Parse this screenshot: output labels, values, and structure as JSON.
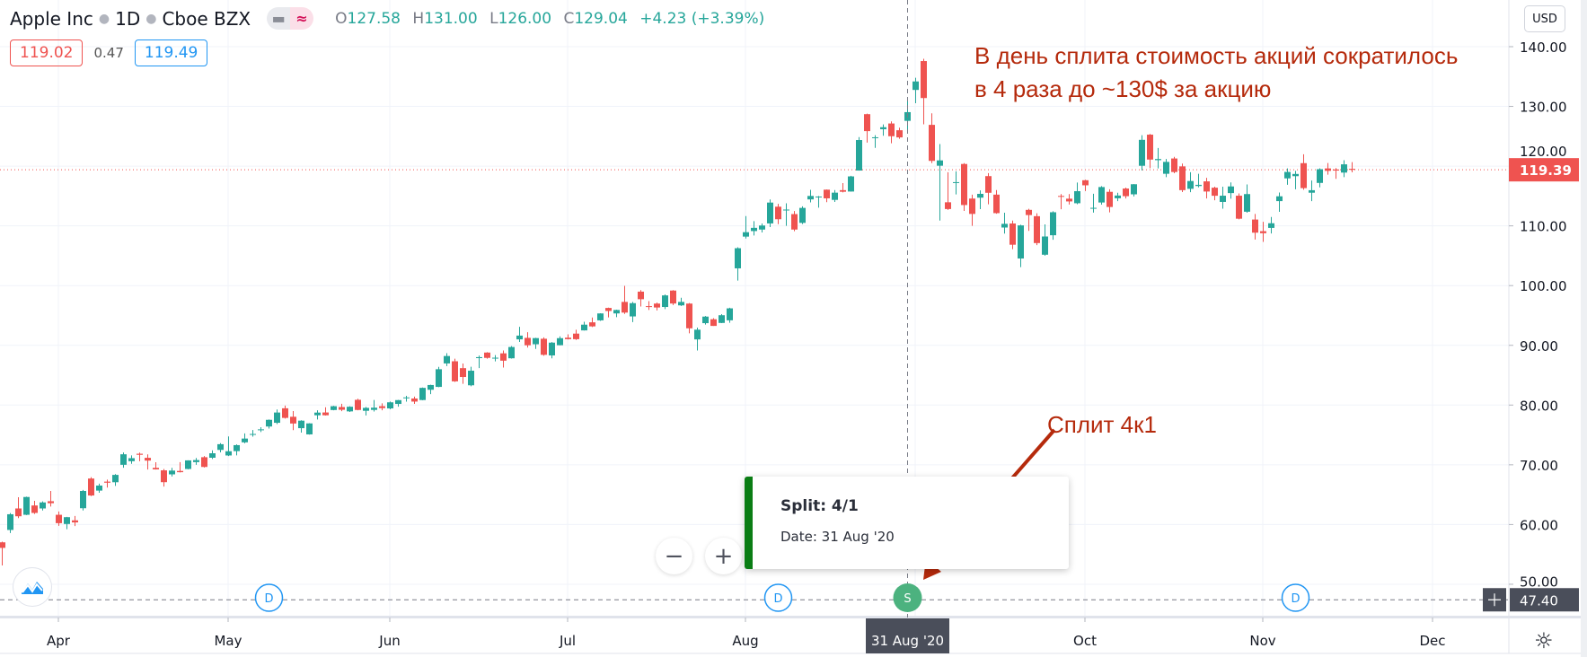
{
  "header": {
    "symbol": "Apple Inc",
    "interval": "1D",
    "exchange": "Cboe BZX",
    "toggle_icons": [
      "minus-icon",
      "approx-icon"
    ],
    "ohlc": {
      "o_label": "O",
      "o": "127.58",
      "h_label": "H",
      "h": "131.00",
      "l_label": "L",
      "l": "126.00",
      "c_label": "C",
      "c": "129.04",
      "change": "+4.23 (+3.39%)"
    },
    "bid": "119.02",
    "spread": "0.47",
    "ask": "119.49"
  },
  "currency_button": "USD",
  "annotations": {
    "split_note_line1": "В день сплита стоимость акций сократилось",
    "split_note_line2": "в 4 раза до ~130$ за акцию",
    "split_label": "Сплит 4к1",
    "color": "#b52a0c"
  },
  "tooltip": {
    "title": "Split: 4/1",
    "date": "Date: 31 Aug '20",
    "accent": "#0a7d14"
  },
  "zoom_controls": {
    "minus": "−",
    "plus": "+"
  },
  "crosshair": {
    "date_label": "31 Aug '20",
    "price_label": "47.40",
    "date": "2020-08-31",
    "price": 47.4
  },
  "last_price": {
    "label": "119.39",
    "value": 119.39,
    "color": "#ef5350"
  },
  "colors": {
    "up": "#26a69a",
    "down": "#ef5350",
    "dividend": "#2196f3",
    "split": "#4cb27f"
  },
  "chart_data": {
    "type": "candlestick",
    "title": "",
    "y_ticks": [
      "140.00",
      "130.00",
      "120.00",
      "110.00",
      "100.00",
      "90.00",
      "80.00",
      "70.00",
      "60.00",
      "50.00"
    ],
    "ylim": [
      47.4,
      140
    ],
    "grid": true,
    "x_ticks": [
      {
        "label": "Apr",
        "date": "2020-04-01"
      },
      {
        "label": "May",
        "date": "2020-05-01"
      },
      {
        "label": "Jun",
        "date": "2020-06-01"
      },
      {
        "label": "Jul",
        "date": "2020-07-01"
      },
      {
        "label": "Aug",
        "date": "2020-08-03"
      },
      {
        "label": "",
        "date": "2020-09-01"
      },
      {
        "label": "Oct",
        "date": "2020-10-01"
      },
      {
        "label": "Nov",
        "date": "2020-11-02"
      },
      {
        "label": "Dec",
        "date": "2020-12-01"
      }
    ],
    "events": [
      {
        "type": "D",
        "date": "2020-05-08"
      },
      {
        "type": "D",
        "date": "2020-08-07"
      },
      {
        "type": "S",
        "date": "2020-08-31"
      },
      {
        "type": "D",
        "date": "2020-11-06"
      }
    ],
    "candles": [
      [
        "2020-03-23",
        57.02,
        57.13,
        53.15,
        56.09
      ],
      [
        "2020-03-24",
        59.09,
        61.92,
        58.58,
        61.72
      ],
      [
        "2020-03-25",
        62.69,
        64.56,
        61.08,
        61.38
      ],
      [
        "2020-03-26",
        61.63,
        64.67,
        61.59,
        64.61
      ],
      [
        "2020-03-27",
        63.19,
        63.97,
        61.76,
        61.94
      ],
      [
        "2020-03-30",
        62.69,
        63.88,
        62.35,
        63.7
      ],
      [
        "2020-03-31",
        63.9,
        65.62,
        63.0,
        63.57
      ],
      [
        "2020-04-01",
        61.63,
        62.18,
        59.78,
        60.23
      ],
      [
        "2020-04-02",
        60.09,
        61.29,
        59.22,
        61.23
      ],
      [
        "2020-04-03",
        60.7,
        61.43,
        59.74,
        60.35
      ],
      [
        "2020-04-06",
        62.73,
        65.78,
        62.35,
        65.62
      ],
      [
        "2020-04-07",
        67.7,
        67.93,
        64.75,
        64.86
      ],
      [
        "2020-04-08",
        65.68,
        66.84,
        65.31,
        66.52
      ],
      [
        "2020-04-09",
        67.18,
        67.52,
        66.18,
        67.0
      ],
      [
        "2020-04-13",
        67.08,
        68.43,
        66.46,
        68.31
      ],
      [
        "2020-04-14",
        70.0,
        72.06,
        69.51,
        71.76
      ],
      [
        "2020-04-15",
        70.6,
        71.58,
        70.16,
        71.11
      ],
      [
        "2020-04-16",
        71.85,
        72.05,
        70.59,
        71.67
      ],
      [
        "2020-04-17",
        71.17,
        71.74,
        69.21,
        70.7
      ],
      [
        "2020-04-20",
        69.49,
        70.42,
        69.21,
        69.23
      ],
      [
        "2020-04-21",
        69.07,
        69.31,
        66.36,
        67.09
      ],
      [
        "2020-04-22",
        68.4,
        69.48,
        68.05,
        69.03
      ],
      [
        "2020-04-23",
        68.97,
        70.44,
        68.72,
        68.76
      ],
      [
        "2020-04-24",
        69.3,
        70.75,
        69.25,
        70.74
      ],
      [
        "2020-04-27",
        70.45,
        71.14,
        69.99,
        70.79
      ],
      [
        "2020-04-28",
        71.27,
        71.46,
        69.55,
        69.64
      ],
      [
        "2020-04-29",
        71.18,
        72.42,
        70.97,
        71.93
      ],
      [
        "2020-04-30",
        72.49,
        73.63,
        72.09,
        73.45
      ],
      [
        "2020-05-01",
        71.56,
        74.75,
        71.46,
        72.27
      ],
      [
        "2020-05-04",
        72.29,
        73.42,
        71.58,
        73.29
      ],
      [
        "2020-05-05",
        73.76,
        75.25,
        73.61,
        74.39
      ],
      [
        "2020-05-06",
        75.11,
        75.81,
        74.72,
        75.16
      ],
      [
        "2020-05-07",
        75.81,
        76.29,
        75.49,
        75.93
      ],
      [
        "2020-05-08",
        76.41,
        77.59,
        76.07,
        77.53
      ],
      [
        "2020-05-11",
        77.03,
        79.26,
        76.81,
        78.75
      ],
      [
        "2020-05-12",
        79.46,
        79.92,
        77.73,
        77.85
      ],
      [
        "2020-05-13",
        78.04,
        78.99,
        75.8,
        76.91
      ],
      [
        "2020-05-14",
        76.13,
        77.45,
        75.38,
        77.39
      ],
      [
        "2020-05-15",
        75.09,
        76.97,
        75.05,
        76.93
      ],
      [
        "2020-05-18",
        78.29,
        79.13,
        77.58,
        78.74
      ],
      [
        "2020-05-19",
        78.76,
        79.63,
        78.25,
        78.29
      ],
      [
        "2020-05-20",
        79.17,
        79.88,
        79.13,
        79.81
      ],
      [
        "2020-05-21",
        79.67,
        80.22,
        78.97,
        79.21
      ],
      [
        "2020-05-22",
        78.94,
        79.81,
        78.84,
        79.72
      ],
      [
        "2020-05-26",
        80.88,
        81.06,
        79.13,
        79.18
      ],
      [
        "2020-05-27",
        79.04,
        79.68,
        78.27,
        79.53
      ],
      [
        "2020-05-28",
        79.19,
        80.86,
        78.91,
        79.56
      ],
      [
        "2020-05-29",
        79.81,
        80.29,
        79.12,
        79.49
      ],
      [
        "2020-06-01",
        79.44,
        80.59,
        79.3,
        80.46
      ],
      [
        "2020-06-02",
        80.19,
        80.86,
        79.73,
        80.83
      ],
      [
        "2020-06-03",
        81.17,
        81.55,
        80.57,
        81.28
      ],
      [
        "2020-06-04",
        81.1,
        81.41,
        80.2,
        80.58
      ],
      [
        "2020-06-05",
        80.84,
        82.94,
        80.81,
        82.88
      ],
      [
        "2020-06-08",
        82.56,
        83.4,
        81.83,
        83.36
      ],
      [
        "2020-06-09",
        83.04,
        86.4,
        83.0,
        86.0
      ],
      [
        "2020-06-10",
        86.97,
        88.69,
        86.52,
        88.21
      ],
      [
        "2020-06-11",
        87.33,
        87.76,
        83.87,
        83.97
      ],
      [
        "2020-06-12",
        86.18,
        86.95,
        83.56,
        84.7
      ],
      [
        "2020-06-15",
        83.31,
        86.42,
        83.14,
        85.75
      ],
      [
        "2020-06-16",
        87.86,
        88.3,
        86.18,
        88.02
      ],
      [
        "2020-06-17",
        88.79,
        88.85,
        87.77,
        87.9
      ],
      [
        "2020-06-18",
        87.85,
        88.36,
        87.31,
        87.93
      ],
      [
        "2020-06-19",
        88.66,
        89.14,
        86.29,
        87.43
      ],
      [
        "2020-06-22",
        87.83,
        89.86,
        87.79,
        89.72
      ],
      [
        "2020-06-23",
        91.0,
        93.1,
        90.57,
        91.63
      ],
      [
        "2020-06-24",
        91.25,
        92.2,
        89.63,
        90.01
      ],
      [
        "2020-06-25",
        90.18,
        91.25,
        89.39,
        91.21
      ],
      [
        "2020-06-26",
        91.1,
        91.33,
        88.25,
        88.41
      ],
      [
        "2020-06-29",
        88.31,
        90.54,
        87.82,
        90.45
      ],
      [
        "2020-06-30",
        90.02,
        91.5,
        90.0,
        91.2
      ],
      [
        "2020-07-01",
        91.28,
        91.84,
        90.98,
        91.03
      ],
      [
        "2020-07-02",
        91.96,
        92.62,
        90.91,
        91.03
      ],
      [
        "2020-07-06",
        92.5,
        93.95,
        92.47,
        93.46
      ],
      [
        "2020-07-07",
        93.85,
        94.65,
        93.06,
        93.17
      ],
      [
        "2020-07-08",
        94.18,
        95.38,
        94.09,
        95.34
      ],
      [
        "2020-07-09",
        96.26,
        96.32,
        94.67,
        95.75
      ],
      [
        "2020-07-10",
        95.34,
        95.98,
        94.71,
        95.92
      ],
      [
        "2020-07-13",
        97.27,
        99.96,
        95.26,
        95.48
      ],
      [
        "2020-07-14",
        94.84,
        97.26,
        93.88,
        97.06
      ],
      [
        "2020-07-15",
        98.99,
        99.25,
        96.49,
        97.72
      ],
      [
        "2020-07-16",
        96.56,
        97.4,
        95.91,
        96.52
      ],
      [
        "2020-07-17",
        96.99,
        97.15,
        95.84,
        96.33
      ],
      [
        "2020-07-20",
        96.42,
        98.5,
        96.06,
        98.36
      ],
      [
        "2020-07-21",
        99.17,
        99.25,
        96.74,
        97.0
      ],
      [
        "2020-07-22",
        96.69,
        97.97,
        96.6,
        97.27
      ],
      [
        "2020-07-23",
        96.99,
        97.08,
        92.01,
        92.85
      ],
      [
        "2020-07-24",
        90.99,
        92.97,
        89.14,
        92.62
      ],
      [
        "2020-07-27",
        93.71,
        94.91,
        93.48,
        94.81
      ],
      [
        "2020-07-28",
        94.37,
        94.55,
        93.25,
        93.25
      ],
      [
        "2020-07-29",
        93.75,
        95.23,
        93.71,
        95.04
      ],
      [
        "2020-07-30",
        94.19,
        96.3,
        93.77,
        96.19
      ],
      [
        "2020-07-31",
        102.89,
        106.42,
        100.83,
        106.26
      ],
      [
        "2020-08-03",
        108.2,
        111.64,
        107.89,
        108.94
      ],
      [
        "2020-08-04",
        109.13,
        110.79,
        108.39,
        109.67
      ],
      [
        "2020-08-05",
        109.38,
        110.39,
        108.9,
        110.06
      ],
      [
        "2020-08-06",
        110.41,
        114.41,
        109.8,
        113.9
      ],
      [
        "2020-08-07",
        113.21,
        113.68,
        110.29,
        111.11
      ],
      [
        "2020-08-10",
        112.6,
        113.78,
        110.0,
        112.73
      ],
      [
        "2020-08-11",
        111.97,
        112.48,
        109.11,
        109.38
      ],
      [
        "2020-08-12",
        110.5,
        113.28,
        110.3,
        113.01
      ],
      [
        "2020-08-13",
        114.43,
        116.04,
        113.93,
        115.01
      ],
      [
        "2020-08-14",
        114.83,
        115.0,
        113.05,
        114.91
      ],
      [
        "2020-08-17",
        116.06,
        116.09,
        113.96,
        114.61
      ],
      [
        "2020-08-18",
        114.35,
        116.0,
        114.01,
        115.56
      ],
      [
        "2020-08-19",
        115.98,
        117.16,
        115.61,
        115.71
      ],
      [
        "2020-08-20",
        115.75,
        118.39,
        115.73,
        118.28
      ],
      [
        "2020-08-21",
        119.26,
        124.87,
        119.25,
        124.37
      ],
      [
        "2020-08-24",
        128.7,
        128.79,
        123.94,
        125.86
      ],
      [
        "2020-08-25",
        124.7,
        125.18,
        123.05,
        124.83
      ],
      [
        "2020-08-26",
        126.18,
        126.99,
        125.08,
        126.52
      ],
      [
        "2020-08-27",
        127.14,
        127.49,
        123.83,
        125.01
      ],
      [
        "2020-08-28",
        126.01,
        126.44,
        124.58,
        124.81
      ],
      [
        "2020-08-31",
        127.58,
        131.0,
        126.0,
        129.04
      ],
      [
        "2020-09-01",
        132.76,
        134.8,
        130.53,
        134.18
      ],
      [
        "2020-09-02",
        137.59,
        137.98,
        127.0,
        131.4
      ],
      [
        "2020-09-03",
        126.91,
        128.84,
        120.5,
        120.88
      ],
      [
        "2020-09-04",
        120.07,
        123.7,
        110.89,
        120.96
      ],
      [
        "2020-09-08",
        113.95,
        118.99,
        112.68,
        112.82
      ],
      [
        "2020-09-09",
        117.26,
        119.14,
        115.26,
        117.32
      ],
      [
        "2020-09-10",
        120.36,
        120.5,
        112.5,
        113.49
      ],
      [
        "2020-09-11",
        114.57,
        115.23,
        110.0,
        112.0
      ],
      [
        "2020-09-14",
        114.72,
        115.93,
        112.8,
        115.36
      ],
      [
        "2020-09-15",
        118.33,
        118.83,
        113.61,
        115.54
      ],
      [
        "2020-09-16",
        115.23,
        116.0,
        112.04,
        112.13
      ],
      [
        "2020-09-17",
        109.72,
        112.2,
        108.71,
        110.34
      ],
      [
        "2020-09-18",
        110.4,
        110.88,
        106.09,
        106.84
      ],
      [
        "2020-09-21",
        104.54,
        110.19,
        103.1,
        110.08
      ],
      [
        "2020-09-22",
        112.68,
        112.86,
        109.16,
        111.81
      ],
      [
        "2020-09-23",
        111.62,
        112.11,
        106.77,
        107.12
      ],
      [
        "2020-09-24",
        105.17,
        110.25,
        105.0,
        108.22
      ],
      [
        "2020-09-25",
        108.43,
        112.44,
        107.67,
        112.28
      ],
      [
        "2020-09-28",
        115.01,
        115.32,
        112.78,
        114.96
      ],
      [
        "2020-09-29",
        114.55,
        115.31,
        113.57,
        114.09
      ],
      [
        "2020-09-30",
        113.79,
        117.26,
        113.62,
        115.81
      ],
      [
        "2020-10-01",
        117.64,
        117.72,
        115.83,
        116.79
      ],
      [
        "2020-10-02",
        112.89,
        115.37,
        112.22,
        113.02
      ],
      [
        "2020-10-05",
        113.91,
        116.65,
        113.55,
        116.5
      ],
      [
        "2020-10-06",
        115.7,
        116.12,
        112.25,
        113.16
      ],
      [
        "2020-10-07",
        114.62,
        115.55,
        114.13,
        115.08
      ],
      [
        "2020-10-08",
        116.25,
        116.4,
        114.59,
        114.97
      ],
      [
        "2020-10-09",
        115.28,
        117.0,
        114.92,
        116.97
      ],
      [
        "2020-10-12",
        120.06,
        125.18,
        119.28,
        124.4
      ],
      [
        "2020-10-13",
        125.27,
        125.39,
        119.65,
        121.1
      ],
      [
        "2020-10-14",
        121.0,
        123.03,
        119.62,
        121.19
      ],
      [
        "2020-10-15",
        118.72,
        121.2,
        118.15,
        120.71
      ],
      [
        "2020-10-16",
        121.28,
        121.55,
        118.81,
        119.02
      ],
      [
        "2020-10-19",
        119.96,
        120.42,
        115.66,
        115.98
      ],
      [
        "2020-10-20",
        116.2,
        118.98,
        115.63,
        117.51
      ],
      [
        "2020-10-21",
        116.67,
        118.71,
        116.45,
        116.87
      ],
      [
        "2020-10-22",
        117.45,
        118.04,
        114.59,
        115.75
      ],
      [
        "2020-10-23",
        116.39,
        116.55,
        114.28,
        115.04
      ],
      [
        "2020-10-26",
        114.01,
        116.55,
        112.88,
        115.05
      ],
      [
        "2020-10-27",
        115.49,
        117.28,
        114.54,
        116.6
      ],
      [
        "2020-10-28",
        115.05,
        115.43,
        111.1,
        111.2
      ],
      [
        "2020-10-29",
        112.37,
        116.93,
        112.2,
        115.32
      ],
      [
        "2020-10-30",
        111.06,
        111.99,
        107.72,
        108.86
      ],
      [
        "2020-11-02",
        109.11,
        110.68,
        107.32,
        108.77
      ],
      [
        "2020-11-03",
        109.66,
        111.49,
        108.73,
        110.44
      ],
      [
        "2020-11-04",
        114.14,
        115.59,
        112.35,
        114.95
      ],
      [
        "2020-11-05",
        117.95,
        119.62,
        116.87,
        119.03
      ],
      [
        "2020-11-06",
        118.32,
        119.2,
        116.13,
        118.69
      ],
      [
        "2020-11-09",
        120.5,
        121.99,
        116.05,
        116.32
      ],
      [
        "2020-11-10",
        115.55,
        117.59,
        114.13,
        115.97
      ],
      [
        "2020-11-11",
        117.19,
        119.63,
        116.44,
        119.49
      ],
      [
        "2020-11-12",
        119.62,
        120.53,
        118.57,
        119.21
      ],
      [
        "2020-11-13",
        119.44,
        119.67,
        117.87,
        119.26
      ],
      [
        "2020-11-16",
        118.92,
        120.99,
        118.15,
        120.3
      ],
      [
        "2020-11-17",
        119.55,
        120.67,
        118.96,
        119.39
      ]
    ]
  }
}
